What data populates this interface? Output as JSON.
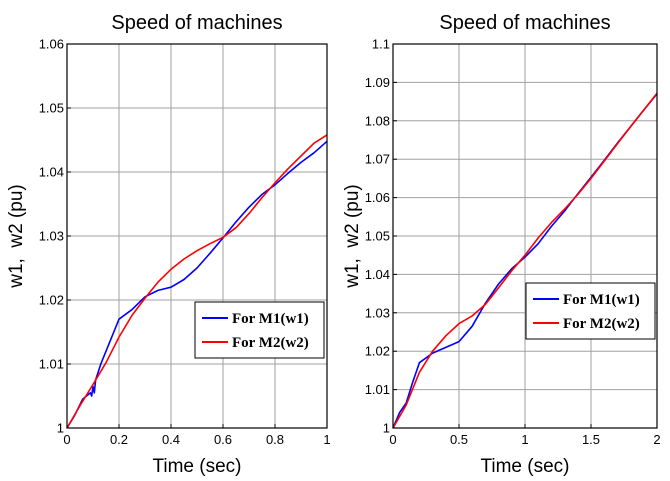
{
  "chart_data": [
    {
      "type": "line",
      "title": "Speed of machines",
      "xlabel": "Time (sec)",
      "ylabel": "w1,  w2 (pu)",
      "xlim": [
        0,
        1
      ],
      "ylim": [
        1,
        1.06
      ],
      "xticks": [
        "0",
        "0.2",
        "0.4",
        "0.6",
        "0.8",
        "1"
      ],
      "yticks": [
        "1",
        "1.01",
        "1.02",
        "1.03",
        "1.04",
        "1.05",
        "1.06"
      ],
      "grid": true,
      "legend_position": "lower-right",
      "series": [
        {
          "name": "For M1(w1)",
          "color": "#0000ff",
          "x": [
            0,
            0.03,
            0.06,
            0.09,
            0.095,
            0.1,
            0.105,
            0.11,
            0.13,
            0.16,
            0.18,
            0.2,
            0.25,
            0.3,
            0.35,
            0.4,
            0.45,
            0.5,
            0.55,
            0.6,
            0.65,
            0.7,
            0.75,
            0.8,
            0.85,
            0.9,
            0.95,
            1.0
          ],
          "y": [
            1.0,
            1.002,
            1.0045,
            1.0055,
            1.005,
            1.0065,
            1.0055,
            1.0075,
            1.01,
            1.013,
            1.015,
            1.017,
            1.0185,
            1.0205,
            1.0215,
            1.022,
            1.0232,
            1.025,
            1.0273,
            1.0297,
            1.0322,
            1.0345,
            1.0365,
            1.038,
            1.0398,
            1.0415,
            1.043,
            1.0448
          ]
        },
        {
          "name": "For M2(w2)",
          "color": "#ff0000",
          "x": [
            0,
            0.05,
            0.1,
            0.15,
            0.2,
            0.25,
            0.3,
            0.35,
            0.4,
            0.45,
            0.5,
            0.55,
            0.6,
            0.65,
            0.7,
            0.75,
            0.8,
            0.85,
            0.9,
            0.95,
            1.0
          ],
          "y": [
            1.0,
            1.0035,
            1.0068,
            1.0102,
            1.0142,
            1.0176,
            1.0203,
            1.0228,
            1.0248,
            1.0264,
            1.0277,
            1.0288,
            1.0298,
            1.0313,
            1.0335,
            1.036,
            1.0383,
            1.0405,
            1.0425,
            1.0445,
            1.0458
          ]
        }
      ]
    },
    {
      "type": "line",
      "title": "Speed of machines",
      "xlabel": "Time (sec)",
      "ylabel": "w1,  w2 (pu)",
      "xlim": [
        0,
        2
      ],
      "ylim": [
        1,
        1.1
      ],
      "xticks": [
        "0",
        "0.5",
        "1",
        "1.5",
        "2"
      ],
      "yticks": [
        "1",
        "1.01",
        "1.02",
        "1.03",
        "1.04",
        "1.05",
        "1.06",
        "1.07",
        "1.08",
        "1.09",
        "1.1"
      ],
      "grid": true,
      "legend_position": "lower-right",
      "series": [
        {
          "name": "For M1(w1)",
          "color": "#0000ff",
          "x": [
            0,
            0.05,
            0.1,
            0.15,
            0.2,
            0.3,
            0.4,
            0.5,
            0.6,
            0.7,
            0.8,
            0.9,
            1.0,
            1.1,
            1.2,
            1.3,
            1.4,
            1.5,
            1.6,
            1.7,
            1.8,
            1.9,
            2.0
          ],
          "y": [
            1.0,
            1.004,
            1.0065,
            1.012,
            1.017,
            1.0195,
            1.021,
            1.0225,
            1.0265,
            1.0325,
            1.0375,
            1.0415,
            1.0445,
            1.048,
            1.0525,
            1.0565,
            1.061,
            1.0653,
            1.0697,
            1.0742,
            1.0785,
            1.0828,
            1.087
          ]
        },
        {
          "name": "For M2(w2)",
          "color": "#ff0000",
          "x": [
            0,
            0.1,
            0.2,
            0.3,
            0.4,
            0.5,
            0.6,
            0.7,
            0.8,
            0.9,
            1.0,
            1.1,
            1.2,
            1.3,
            1.4,
            1.5,
            1.6,
            1.7,
            1.8,
            1.9,
            2.0
          ],
          "y": [
            1.0,
            1.006,
            1.0145,
            1.02,
            1.024,
            1.0272,
            1.0292,
            1.0322,
            1.0365,
            1.041,
            1.045,
            1.0495,
            1.0535,
            1.057,
            1.0608,
            1.065,
            1.0695,
            1.074,
            1.0785,
            1.0828,
            1.0872
          ]
        }
      ]
    }
  ]
}
